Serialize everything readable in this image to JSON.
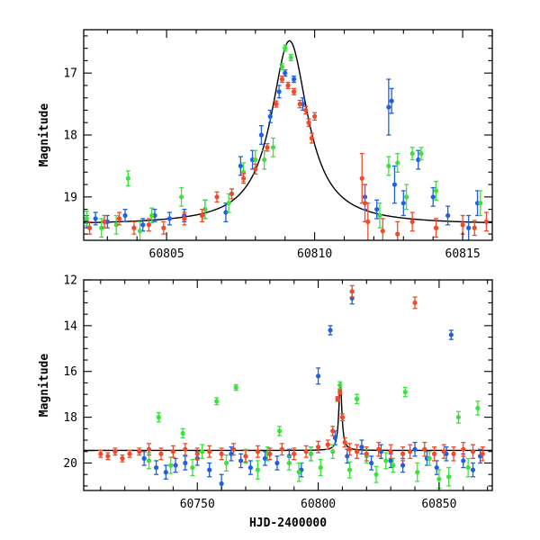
{
  "chart_data": [
    {
      "type": "scatter",
      "title": "",
      "xlabel": "",
      "ylabel": "Magnitude",
      "xlim": [
        60802.2,
        60816.0
      ],
      "ylim": [
        19.7,
        16.3
      ],
      "y_inverted": true,
      "grid": false,
      "x_ticks": [
        "60805",
        "60810",
        "60815"
      ],
      "x_tick_values": [
        60805,
        60810,
        60815
      ],
      "y_ticks": [
        "17",
        "18",
        "19"
      ],
      "y_tick_values": [
        17,
        18,
        19
      ],
      "colors": {
        "blue": "#1f5fe0",
        "green": "#3ee03e",
        "red": "#f04a2a",
        "model": "#000000"
      },
      "model_curve": {
        "peak_x": 60809.15,
        "peak_mag": 16.48,
        "baseline_mag": 19.45,
        "width": 0.75
      },
      "series": [
        {
          "color": "blue",
          "x": [
            60802.3,
            60802.6,
            60803.0,
            60803.6,
            60804.2,
            60804.6,
            60805.1,
            60805.6,
            60806.3,
            60807.0,
            60807.5,
            60807.9,
            60808.2,
            60808.5,
            60808.8,
            60809.0,
            60809.3,
            60809.6,
            60811.7,
            60812.1,
            60812.5,
            60812.6,
            60812.7,
            60813.0,
            60813.5,
            60814.0,
            60814.5,
            60815.2,
            60815.5
          ],
          "y": [
            19.4,
            19.35,
            19.4,
            19.3,
            19.45,
            19.3,
            19.35,
            19.3,
            19.2,
            19.25,
            18.5,
            18.4,
            18.0,
            17.7,
            17.3,
            17.0,
            17.1,
            17.5,
            19.0,
            19.2,
            17.55,
            17.45,
            18.8,
            19.1,
            18.4,
            19.0,
            19.3,
            19.5,
            19.1
          ],
          "yerr": [
            0.1,
            0.1,
            0.1,
            0.1,
            0.1,
            0.1,
            0.1,
            0.1,
            0.15,
            0.15,
            0.15,
            0.15,
            0.15,
            0.1,
            0.1,
            0.05,
            0.05,
            0.1,
            0.2,
            0.15,
            0.45,
            0.2,
            0.3,
            0.2,
            0.15,
            0.15,
            0.15,
            0.2,
            0.2
          ]
        },
        {
          "color": "green",
          "x": [
            60802.3,
            60802.8,
            60803.3,
            60803.7,
            60804.1,
            60804.5,
            60805.5,
            60806.3,
            60807.1,
            60807.6,
            60808.0,
            60808.3,
            60808.6,
            60808.9,
            60809.0,
            60809.2,
            60812.2,
            60812.5,
            60812.8,
            60813.1,
            60813.3,
            60813.6,
            60814.1,
            60815.6
          ],
          "y": [
            19.35,
            19.5,
            19.45,
            18.7,
            19.55,
            19.3,
            19.0,
            19.2,
            19.1,
            18.6,
            18.4,
            18.4,
            18.2,
            16.9,
            16.6,
            16.75,
            19.3,
            18.5,
            18.45,
            19.0,
            18.3,
            18.3,
            18.9,
            19.1
          ],
          "yerr": [
            0.12,
            0.15,
            0.15,
            0.12,
            0.15,
            0.12,
            0.15,
            0.15,
            0.15,
            0.15,
            0.15,
            0.15,
            0.15,
            0.05,
            0.05,
            0.05,
            0.2,
            0.15,
            0.15,
            0.2,
            0.1,
            0.1,
            0.15,
            0.2
          ]
        },
        {
          "color": "red",
          "x": [
            60802.4,
            60802.9,
            60803.4,
            60803.9,
            60804.4,
            60804.9,
            60805.6,
            60806.2,
            60806.7,
            60807.2,
            60807.6,
            60808.0,
            60808.4,
            60808.7,
            60808.9,
            60809.1,
            60809.3,
            60809.5,
            60809.7,
            60809.8,
            60809.9,
            60810.0,
            60811.6,
            60811.7,
            60811.8,
            60812.3,
            60812.8,
            60813.3,
            60814.1,
            60815.0,
            60815.4,
            60815.8
          ],
          "y": [
            19.5,
            19.4,
            19.35,
            19.5,
            19.45,
            19.5,
            19.35,
            19.3,
            19.0,
            18.95,
            18.7,
            18.55,
            18.2,
            17.5,
            17.1,
            17.2,
            17.3,
            17.5,
            17.6,
            17.8,
            18.05,
            17.7,
            18.7,
            19.1,
            19.4,
            19.55,
            19.6,
            19.4,
            19.5,
            19.45,
            19.5,
            19.4
          ],
          "yerr": [
            0.1,
            0.1,
            0.1,
            0.1,
            0.1,
            0.1,
            0.1,
            0.1,
            0.08,
            0.08,
            0.08,
            0.08,
            0.06,
            0.05,
            0.05,
            0.05,
            0.05,
            0.06,
            0.06,
            0.06,
            0.08,
            0.06,
            0.4,
            0.3,
            0.3,
            0.2,
            0.2,
            0.15,
            0.15,
            0.15,
            0.12,
            0.15
          ]
        }
      ]
    },
    {
      "type": "scatter",
      "title": "",
      "xlabel": "HJD-2400000",
      "ylabel": "Magnitude",
      "xlim": [
        60703.0,
        60872.0
      ],
      "ylim": [
        21.2,
        12.0
      ],
      "y_inverted": true,
      "grid": false,
      "x_ticks": [
        "60750",
        "60800",
        "60850"
      ],
      "x_tick_values": [
        60750,
        60800,
        60850
      ],
      "y_ticks": [
        "12",
        "14",
        "16",
        "18",
        "20"
      ],
      "y_tick_values": [
        12,
        14,
        16,
        18,
        20
      ],
      "colors": {
        "blue": "#1f5fe0",
        "green": "#3ee03e",
        "red": "#f04a2a",
        "model": "#000000"
      },
      "model_curve": {
        "peak_x": 60809.15,
        "peak_mag": 16.48,
        "baseline_mag": 19.45,
        "width": 0.75
      },
      "series": [
        {
          "color": "blue",
          "x": [
            60728,
            60733,
            60737,
            60741,
            60745,
            60750,
            60755,
            60760,
            60764,
            60768,
            60772,
            60778,
            60783,
            60788,
            60793,
            60797,
            60800,
            60805,
            60807,
            60812,
            60814,
            60818,
            60822,
            60826,
            60830,
            60835,
            60840,
            60845,
            60849,
            60853,
            60855,
            60860,
            60864,
            60867
          ],
          "y": [
            19.8,
            20.2,
            20.4,
            20.1,
            20.0,
            19.8,
            20.3,
            20.9,
            19.6,
            19.9,
            20.2,
            19.8,
            20.0,
            19.7,
            20.3,
            19.6,
            16.2,
            14.2,
            18.9,
            19.7,
            12.8,
            19.3,
            20.0,
            19.5,
            19.9,
            20.1,
            19.4,
            19.8,
            20.2,
            19.6,
            14.4,
            19.9,
            20.3,
            19.7
          ],
          "yerr": [
            0.3,
            0.3,
            0.3,
            0.3,
            0.3,
            0.3,
            0.3,
            0.4,
            0.3,
            0.3,
            0.3,
            0.3,
            0.3,
            0.3,
            0.3,
            0.3,
            0.35,
            0.2,
            0.3,
            0.3,
            0.25,
            0.3,
            0.3,
            0.3,
            0.3,
            0.3,
            0.3,
            0.3,
            0.3,
            0.3,
            0.2,
            0.3,
            0.3,
            0.3
          ]
        },
        {
          "color": "green",
          "x": [
            60730,
            60734,
            60739,
            60744,
            60748,
            60752,
            60758,
            60762,
            60766,
            60770,
            60775,
            60779,
            60784,
            60788,
            60792,
            60797,
            60801,
            60806,
            60809,
            60813,
            60816,
            60820,
            60824,
            60828,
            60831,
            60836,
            60841,
            60846,
            60850,
            60854,
            60858,
            60862,
            60866
          ],
          "y": [
            19.9,
            18.0,
            20.1,
            18.7,
            20.2,
            19.5,
            17.3,
            20.0,
            16.7,
            19.7,
            20.3,
            19.6,
            18.6,
            20.0,
            20.4,
            19.6,
            20.2,
            19.5,
            16.6,
            20.3,
            17.2,
            19.7,
            20.5,
            19.9,
            20.1,
            16.9,
            20.4,
            19.8,
            20.7,
            20.6,
            18.0,
            20.2,
            17.6
          ],
          "yerr": [
            0.35,
            0.2,
            0.35,
            0.2,
            0.35,
            0.3,
            0.15,
            0.35,
            0.12,
            0.3,
            0.4,
            0.3,
            0.2,
            0.3,
            0.4,
            0.3,
            0.35,
            0.3,
            0.15,
            0.35,
            0.2,
            0.3,
            0.35,
            0.35,
            0.3,
            0.2,
            0.4,
            0.3,
            0.4,
            0.4,
            0.25,
            0.4,
            0.3
          ]
        },
        {
          "color": "red",
          "x": [
            60710,
            60713,
            60716,
            60719,
            60722,
            60726,
            60730,
            60735,
            60740,
            60745,
            60750,
            60755,
            60760,
            60765,
            60770,
            60775,
            60780,
            60785,
            60790,
            60795,
            60800,
            60804,
            60806,
            60808,
            60809,
            60810,
            60811,
            60813,
            60814,
            60816,
            60820,
            60825,
            60830,
            60835,
            60838,
            60840,
            60844,
            60848,
            60852,
            60856,
            60860,
            60864,
            60868
          ],
          "y": [
            19.6,
            19.7,
            19.5,
            19.8,
            19.6,
            19.5,
            19.4,
            19.6,
            19.5,
            19.4,
            19.6,
            19.5,
            19.6,
            19.4,
            19.7,
            19.5,
            19.6,
            19.4,
            19.6,
            19.5,
            19.3,
            19.2,
            18.6,
            17.2,
            16.9,
            18.0,
            19.1,
            19.4,
            12.5,
            19.5,
            19.6,
            19.4,
            19.5,
            19.6,
            19.5,
            13.0,
            19.4,
            19.6,
            19.5,
            19.6,
            19.4,
            19.5,
            19.6
          ],
          "yerr": [
            0.15,
            0.15,
            0.15,
            0.15,
            0.15,
            0.15,
            0.25,
            0.25,
            0.25,
            0.25,
            0.25,
            0.25,
            0.25,
            0.25,
            0.25,
            0.25,
            0.25,
            0.25,
            0.25,
            0.25,
            0.25,
            0.2,
            0.2,
            0.1,
            0.1,
            0.15,
            0.2,
            0.25,
            0.25,
            0.3,
            0.3,
            0.3,
            0.3,
            0.3,
            0.3,
            0.25,
            0.3,
            0.3,
            0.3,
            0.3,
            0.3,
            0.3,
            0.3
          ]
        }
      ]
    }
  ]
}
